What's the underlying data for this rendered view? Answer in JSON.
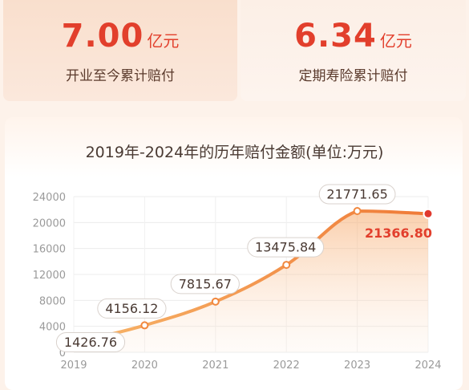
{
  "stats": [
    {
      "value": "7.00",
      "unit": "亿元",
      "label": "开业至今累计赔付"
    },
    {
      "value": "6.34",
      "unit": "亿元",
      "label": "定期寿险累计赔付"
    }
  ],
  "colors": {
    "accent": "#e23f2c",
    "line": "#f1883f",
    "highlight_point": "#e0392e",
    "label_text": "#4a3a33"
  },
  "chart_data": {
    "type": "area",
    "title": "2019年-2024年的历年赔付金额(单位:万元)",
    "xlabel": "",
    "ylabel": "",
    "categories": [
      "2019",
      "2020",
      "2021",
      "2022",
      "2023",
      "2024"
    ],
    "series": [
      {
        "values": [
          1426.76,
          4156.12,
          7815.67,
          13475.84,
          21771.65,
          21366.8
        ]
      }
    ],
    "value_labels": [
      "1426.76",
      "4156.12",
      "7815.67",
      "13475.84",
      "21771.65",
      "21366.80"
    ],
    "ylim": [
      0,
      24000
    ],
    "yticks": [
      "0",
      "4000",
      "8000",
      "12000",
      "16000",
      "20000",
      "24000"
    ],
    "grid": true,
    "smooth": true,
    "highlight_last": true
  }
}
